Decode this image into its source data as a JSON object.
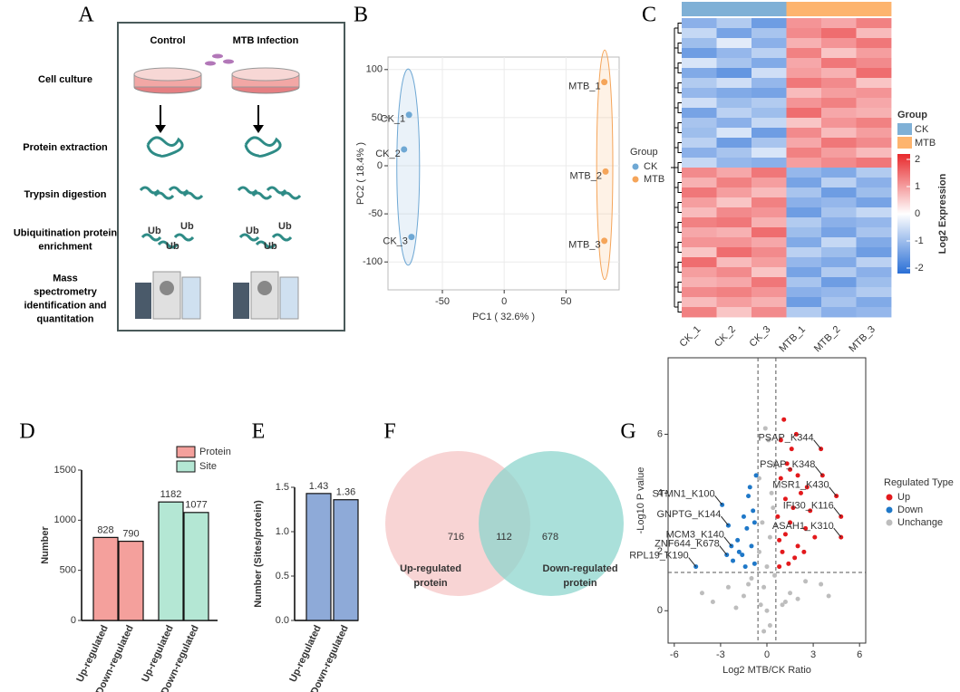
{
  "panel_labels": [
    "A",
    "B",
    "C",
    "D",
    "E",
    "F",
    "G"
  ],
  "workflow": {
    "columns": [
      "Control",
      "MTB  Infection"
    ],
    "steps": [
      [
        "Cell culture"
      ],
      [
        "Protein extraction"
      ],
      [
        "Trypsin digestion"
      ],
      [
        "Ubiquitination protein",
        "enrichment"
      ],
      [
        "Mass",
        "spectrometry",
        "identification and",
        "quantitation"
      ]
    ],
    "ub": "Ub"
  },
  "chart_data": [
    {
      "type": "scatter",
      "xlabel": "PC1 ( 32.6% )",
      "ylabel": "PC2 ( 18.4% )",
      "xlim": [
        -94,
        93
      ],
      "ylim": [
        -129,
        113
      ],
      "xticks": [
        -50,
        0,
        50
      ],
      "yticks": [
        -100,
        -50,
        0,
        50,
        100
      ],
      "grid": true,
      "ellipse": true,
      "legend_title": "Group",
      "series": [
        {
          "name": "CK",
          "color": "#6fa8d4",
          "x": [
            -77,
            -81,
            -75
          ],
          "values": [
            53,
            17,
            -74
          ],
          "labels": [
            "CK_1",
            "CK_2",
            "CK_3"
          ]
        },
        {
          "name": "MTB",
          "color": "#f5a55a",
          "x": [
            81,
            82,
            81
          ],
          "values": [
            87,
            -6,
            -78
          ],
          "labels": [
            "MTB_1",
            "MTB_2",
            "MTB_3"
          ]
        }
      ]
    },
    {
      "type": "heatmap",
      "categories": [
        "CK_1",
        "CK_2",
        "CK_3",
        "MTB_1",
        "MTB_2",
        "MTB_3"
      ],
      "column_groups": [
        "CK",
        "CK",
        "CK",
        "MTB",
        "MTB",
        "MTB"
      ],
      "group_legend": {
        "title": "Group",
        "names": [
          "CK",
          "MTB"
        ],
        "colors": [
          "#7fb0d6",
          "#fdb46e"
        ]
      },
      "colorbar": {
        "title": "Log2 Expression",
        "lim": [
          -2.2,
          2.2
        ],
        "ticks": [
          2,
          1,
          0,
          -1,
          -2
        ],
        "colors": [
          "#2a6fd6",
          "#ffffff",
          "#e8292c"
        ]
      },
      "values": [
        [
          -1.2,
          -0.8,
          -1.5,
          1.1,
          0.9,
          1.3
        ],
        [
          -0.6,
          -1.4,
          -0.9,
          1.2,
          1.5,
          0.7
        ],
        [
          -1.0,
          -0.3,
          -1.2,
          0.8,
          1.1,
          1.4
        ],
        [
          -1.5,
          -1.1,
          -0.7,
          1.3,
          0.6,
          1.0
        ],
        [
          -0.4,
          -0.9,
          -1.3,
          0.9,
          1.4,
          1.2
        ],
        [
          -1.3,
          -1.6,
          -0.5,
          1.0,
          0.8,
          1.5
        ],
        [
          -0.8,
          -0.5,
          -1.1,
          1.4,
          1.2,
          0.6
        ],
        [
          -1.1,
          -1.3,
          -1.4,
          0.7,
          1.0,
          1.1
        ],
        [
          -0.5,
          -1.0,
          -0.8,
          1.1,
          1.3,
          0.9
        ],
        [
          -1.4,
          -0.7,
          -1.0,
          1.5,
          0.9,
          0.8
        ],
        [
          -0.9,
          -1.2,
          -0.6,
          0.6,
          1.1,
          1.3
        ],
        [
          -1.0,
          -0.4,
          -1.5,
          1.2,
          0.7,
          1.0
        ],
        [
          -0.7,
          -1.5,
          -0.9,
          0.9,
          1.4,
          1.2
        ],
        [
          -1.2,
          -0.9,
          -0.4,
          1.3,
          1.0,
          0.7
        ],
        [
          -0.6,
          -1.1,
          -1.2,
          1.0,
          1.2,
          1.4
        ],
        [
          1.2,
          0.9,
          1.4,
          -1.1,
          -1.3,
          -0.8
        ],
        [
          0.8,
          1.3,
          1.0,
          -1.4,
          -0.7,
          -1.2
        ],
        [
          1.4,
          1.0,
          0.7,
          -0.9,
          -1.5,
          -1.0
        ],
        [
          1.0,
          0.6,
          1.3,
          -1.2,
          -1.1,
          -1.4
        ],
        [
          0.7,
          1.2,
          1.1,
          -1.5,
          -0.9,
          -0.6
        ],
        [
          1.3,
          1.4,
          0.8,
          -0.8,
          -1.2,
          -1.1
        ],
        [
          0.9,
          0.8,
          1.5,
          -1.0,
          -1.4,
          -0.9
        ],
        [
          1.1,
          1.1,
          0.9,
          -1.3,
          -0.6,
          -1.3
        ],
        [
          0.6,
          1.5,
          1.2,
          -0.7,
          -1.0,
          -1.5
        ],
        [
          1.5,
          0.7,
          1.0,
          -1.1,
          -1.3,
          -0.7
        ],
        [
          1.0,
          1.2,
          0.6,
          -1.4,
          -0.8,
          -1.2
        ],
        [
          0.8,
          0.9,
          1.4,
          -0.9,
          -1.5,
          -1.0
        ],
        [
          1.2,
          1.3,
          1.1,
          -1.2,
          -1.1,
          -0.8
        ],
        [
          0.7,
          1.0,
          0.8,
          -1.5,
          -0.9,
          -1.3
        ],
        [
          1.3,
          0.6,
          1.2,
          -0.8,
          -1.2,
          -1.1
        ]
      ]
    },
    {
      "type": "bar",
      "ylabel": "Number",
      "categories": [
        "Up-regulated",
        "Down-regulated"
      ],
      "ylim": [
        0,
        1500
      ],
      "yticks": [
        0,
        500,
        1000,
        1500
      ],
      "series": [
        {
          "name": "Protein",
          "color": "#f4a09c",
          "values": [
            828,
            790
          ]
        },
        {
          "name": "Site",
          "color": "#b4e7d4",
          "values": [
            1182,
            1077
          ]
        }
      ]
    },
    {
      "type": "bar",
      "ylabel": "Number (Sites/protein)",
      "categories": [
        "Up-regulated",
        "Down-regulated"
      ],
      "ylim": [
        0,
        1.5
      ],
      "yticks": [
        {
          "value": 0,
          "label": "0.0"
        },
        {
          "value": 0.5,
          "label": "0.5"
        },
        {
          "value": 1,
          "label": "1.0"
        },
        {
          "value": 1.5,
          "label": "1.5"
        }
      ],
      "series": [
        {
          "color": "#8eaad8",
          "values": [
            1.43,
            1.36
          ]
        }
      ]
    },
    {
      "type": "venn",
      "sets": [
        {
          "label": [
            "Up-regulated",
            "protein"
          ],
          "color": "#f6c6c6"
        },
        {
          "label": [
            "Down-regulated",
            "protein"
          ],
          "color": "#8ed6cd"
        }
      ],
      "values": [
        716,
        112,
        678
      ]
    },
    {
      "type": "scatter",
      "xlabel": "Log2 MTB/CK Ratio",
      "ylabel": "-Log10 P value",
      "xlim": [
        -6.4,
        6.4
      ],
      "ylim": [
        -1.1,
        8.6
      ],
      "xticks": [
        -6,
        -3,
        0,
        3,
        6
      ],
      "yticks": [
        0,
        2,
        4,
        6
      ],
      "thresholds": {
        "x": [
          -0.58,
          0.58
        ],
        "y": 1.3
      },
      "legend_title": "Regulated Type",
      "series": [
        {
          "name": "Up",
          "color": "#e3191c",
          "x": [
            0.8,
            1.0,
            1.2,
            1.5,
            1.7,
            2.0,
            2.2,
            2.5,
            0.9,
            1.3,
            1.8,
            2.8,
            3.1,
            0.7,
            1.1,
            1.6,
            2.4,
            1.4,
            0.9,
            2.0,
            3.5,
            3.6,
            4.5,
            4.8,
            4.8,
            1.9,
            1.2,
            0.8,
            2.6,
            1.5
          ],
          "values": [
            1.5,
            2.0,
            2.6,
            3.0,
            3.5,
            2.2,
            4.0,
            2.8,
            4.5,
            5.0,
            1.8,
            3.4,
            2.5,
            3.2,
            6.5,
            5.5,
            2.0,
            1.6,
            5.8,
            4.6,
            5.5,
            4.6,
            3.9,
            3.2,
            2.5,
            6.0,
            3.8,
            2.4,
            4.2,
            4.8
          ]
        },
        {
          "name": "Down",
          "color": "#1f78c8",
          "x": [
            -0.8,
            -1.0,
            -1.3,
            -1.6,
            -1.9,
            -2.2,
            -0.9,
            -1.2,
            -1.5,
            -2.5,
            -2.9,
            -2.5,
            -2.3,
            -2.6,
            -4.6,
            -0.7,
            -1.1,
            -1.8,
            -0.8,
            -1.4
          ],
          "values": [
            1.6,
            2.2,
            2.8,
            1.9,
            2.4,
            1.7,
            3.4,
            3.9,
            3.2,
            2.9,
            3.6,
            2.9,
            2.2,
            1.9,
            1.5,
            4.6,
            4.2,
            2.0,
            3.0,
            1.5
          ]
        },
        {
          "name": "Unchange",
          "color": "#bdbdbd",
          "x": [
            -0.4,
            -0.2,
            0,
            0.2,
            0.4,
            -0.5,
            0.5,
            -1.5,
            -2.5,
            1.5,
            2.5,
            -3.5,
            3.5,
            -1.0,
            1.0,
            0.1,
            -0.1,
            0.3,
            -0.3,
            -2.0,
            2.0,
            -0.5,
            0.5,
            0,
            -4.2,
            4.0,
            -1.2,
            1.2,
            0.2,
            -0.2
          ],
          "values": [
            0.2,
            0.8,
            1.5,
            2.5,
            3.5,
            4.5,
            5.0,
            0.5,
            0.8,
            0.6,
            1.0,
            0.3,
            0.9,
            1.1,
            0.2,
            5.8,
            6.2,
            4.0,
            3.0,
            0.1,
            0.4,
            2.0,
            1.2,
            0.0,
            0.6,
            0.5,
            0.9,
            0.3,
            -0.5,
            -0.7
          ]
        }
      ],
      "annotations": [
        {
          "label": "PSAP_K344",
          "x": 3.5,
          "y": 5.5
        },
        {
          "label": "PSAP_K348",
          "x": 3.6,
          "y": 4.6
        },
        {
          "label": "MSR1_K430",
          "x": 4.5,
          "y": 3.9
        },
        {
          "label": "IFI30_K116",
          "x": 4.8,
          "y": 3.2
        },
        {
          "label": "ASAH1_K310",
          "x": 4.8,
          "y": 2.5
        },
        {
          "label": "STMN1_K100",
          "x": -2.9,
          "y": 3.6
        },
        {
          "label": "GNPTG_K144",
          "x": -2.5,
          "y": 2.9
        },
        {
          "label": "MCM3_K140",
          "x": -2.3,
          "y": 2.2
        },
        {
          "label": "ZNF644_K678",
          "x": -2.6,
          "y": 1.9
        },
        {
          "label": "RPL19_K190",
          "x": -4.6,
          "y": 1.5
        }
      ]
    }
  ]
}
